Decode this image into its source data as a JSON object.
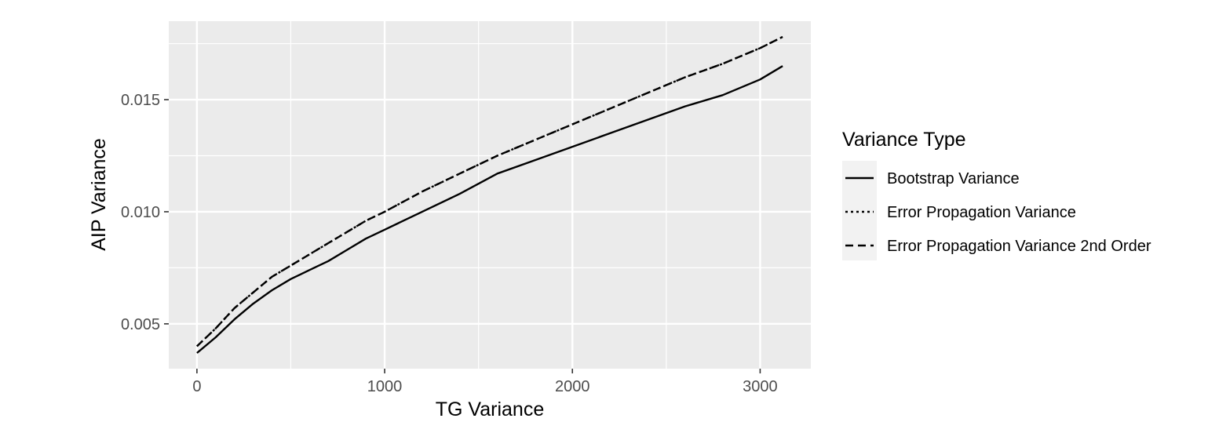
{
  "chart_data": {
    "type": "line",
    "xlabel": "TG Variance",
    "ylabel": "AIP Variance",
    "xlim": [
      -150,
      3270
    ],
    "ylim": [
      0.003,
      0.0185
    ],
    "x_ticks": [
      0,
      1000,
      2000,
      3000
    ],
    "x_tick_labels": [
      "0",
      "1000",
      "2000",
      "3000"
    ],
    "y_ticks": [
      0.005,
      0.01,
      0.015
    ],
    "y_tick_labels": [
      "0.005",
      "0.010",
      "0.015"
    ],
    "grid": true,
    "background": "#ebebeb",
    "legend": {
      "title": "Variance Type",
      "position": "right"
    },
    "series": [
      {
        "name": "Bootstrap Variance",
        "linetype": "solid",
        "color": "#000000",
        "x": [
          0,
          100,
          200,
          300,
          400,
          500,
          600,
          700,
          800,
          900,
          1000,
          1200,
          1400,
          1600,
          1800,
          2000,
          2200,
          2400,
          2600,
          2800,
          3000,
          3120
        ],
        "y": [
          0.0037,
          0.0044,
          0.0052,
          0.0059,
          0.0065,
          0.007,
          0.0074,
          0.0078,
          0.0083,
          0.0088,
          0.0092,
          0.01,
          0.0108,
          0.0117,
          0.0123,
          0.0129,
          0.0135,
          0.0141,
          0.0147,
          0.0152,
          0.0159,
          0.0165
        ]
      },
      {
        "name": "Error Propagation Variance",
        "linetype": "dotted",
        "color": "#000000",
        "x": [
          0,
          100,
          200,
          300,
          400,
          500,
          600,
          700,
          800,
          900,
          1000,
          1200,
          1400,
          1600,
          1800,
          2000,
          2200,
          2400,
          2600,
          2800,
          3000,
          3120
        ],
        "y": [
          0.004,
          0.0048,
          0.0057,
          0.0064,
          0.0071,
          0.0076,
          0.0081,
          0.0086,
          0.0091,
          0.0096,
          0.01,
          0.0109,
          0.0117,
          0.0125,
          0.0132,
          0.0139,
          0.0146,
          0.0153,
          0.016,
          0.0166,
          0.0173,
          0.0178
        ]
      },
      {
        "name": "Error Propagation Variance 2nd Order",
        "linetype": "dashed",
        "color": "#000000",
        "x": [
          0,
          100,
          200,
          300,
          400,
          500,
          600,
          700,
          800,
          900,
          1000,
          1200,
          1400,
          1600,
          1800,
          2000,
          2200,
          2400,
          2600,
          2800,
          3000,
          3120
        ],
        "y": [
          0.004,
          0.0048,
          0.0057,
          0.0064,
          0.0071,
          0.0076,
          0.0081,
          0.0086,
          0.0091,
          0.0096,
          0.01,
          0.0109,
          0.0117,
          0.0125,
          0.0132,
          0.0139,
          0.0146,
          0.0153,
          0.016,
          0.0166,
          0.0173,
          0.0178
        ]
      }
    ]
  }
}
